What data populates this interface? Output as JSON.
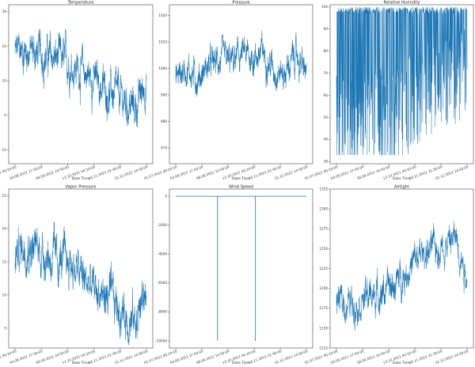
{
  "figure": {
    "line_color": "#1f77b4",
    "x_tick_labels": [
      "01.07.2021 00:10:00",
      "04.08.2021 17:50:00",
      "08.09.2021 10:50:00",
      "13.10.2021 04:10:00",
      "16.11.2021 21:30:00",
      "21.12.2021 14:50:00"
    ],
    "xlabel": "Date Time"
  },
  "chart_data": [
    {
      "type": "line",
      "title": "Temperature",
      "xlabel": "Date Time",
      "ylabel": "",
      "ylim": [
        -14,
        32
      ],
      "yticks": [
        30,
        20,
        10,
        0,
        -10
      ],
      "x": [
        "01.07.2021 00:10:00",
        "04.08.2021 17:50:00",
        "08.09.2021 10:50:00",
        "13.10.2021 04:10:00",
        "16.11.2021 21:30:00",
        "21.12.2021 14:50:00"
      ],
      "trend": [
        18,
        19,
        18,
        17,
        16,
        15,
        13,
        11,
        8,
        6,
        4,
        2,
        10
      ],
      "amplitude": 6,
      "series": [
        {
          "name": "Temperature",
          "values_approx": {
            "start": 17,
            "max": 31,
            "min": -12,
            "end": 14
          }
        }
      ]
    },
    {
      "type": "line",
      "title": "Pressure",
      "xlabel": "Date Time",
      "ylabel": "",
      "ylim": [
        964,
        1024
      ],
      "yticks": [
        1020,
        1010,
        1000,
        990,
        980,
        970
      ],
      "x": [
        "01.07.2021 00:10:00",
        "04.08.2021 17:50:00",
        "08.09.2021 10:50:00",
        "13.10.2021 04:10:00",
        "16.11.2021 21:30:00",
        "21.12.2021 14:50:00"
      ],
      "trend": [
        997,
        1000,
        996,
        1001,
        1003,
        1002,
        1005,
        1004,
        1006,
        1000,
        998,
        1005,
        998
      ],
      "amplitude": 6,
      "series": [
        {
          "name": "Pressure",
          "values_approx": {
            "start": 995,
            "max": 1022,
            "min": 968,
            "end": 1003
          }
        }
      ]
    },
    {
      "type": "line",
      "title": "Relative Humidity",
      "xlabel": "Date Time",
      "ylabel": "",
      "ylim": [
        29,
        101
      ],
      "yticks": [
        100,
        90,
        80,
        70,
        60,
        50,
        40,
        30
      ],
      "x": [
        "01.07.2021 00:10:00",
        "04.08.2021 17:50:00",
        "08.09.2021 10:50:00",
        "13.10.2021 04:10:00",
        "16.11.2021 21:30:00",
        "21.12.2021 14:50:00"
      ],
      "trend": [
        70,
        68,
        68,
        70,
        72,
        72,
        75,
        80,
        85,
        88,
        90,
        92,
        90
      ],
      "amplitude": 30,
      "series": [
        {
          "name": "Relative Humidity",
          "values_approx": {
            "max": 100,
            "min": 33
          }
        }
      ]
    },
    {
      "type": "line",
      "title": "Vapor Pressure",
      "xlabel": "Date Time",
      "ylabel": "",
      "ylim": [
        2,
        26
      ],
      "yticks": [
        25,
        20,
        15,
        10,
        5
      ],
      "x": [
        "01.07.2021 00:10:00",
        "04.08.2021 17:50:00",
        "08.09.2021 10:50:00",
        "13.10.2021 04:10:00",
        "16.11.2021 21:30:00",
        "21.12.2021 14:50:00"
      ],
      "trend": [
        16,
        18,
        17,
        16,
        15,
        15,
        13,
        11,
        10,
        9,
        7,
        6,
        11
      ],
      "amplitude": 3.5,
      "series": [
        {
          "name": "Vapor Pressure",
          "values_approx": {
            "start": 15,
            "max": 24.5,
            "min": 3,
            "end": 12
          }
        }
      ]
    },
    {
      "type": "line",
      "title": "Wind Speed",
      "xlabel": "Date Time",
      "ylabel": "",
      "ylim": [
        -10500,
        500
      ],
      "yticks": [
        0,
        -2000,
        -4000,
        -6000,
        -8000,
        -10000
      ],
      "x": [
        "01.07.2021 00:10:00",
        "04.08.2021 17:50:00",
        "08.09.2021 10:50:00",
        "13.10.2021 04:10:00",
        "16.11.2021 21:30:00",
        "21.12.2021 14:50:00"
      ],
      "series": [
        {
          "name": "Wind Speed",
          "values_approx": {
            "baseline": 0,
            "spikes": [
              {
                "at_fraction": 0.32,
                "value": -9999
              },
              {
                "at_fraction": 0.61,
                "value": -9999
              }
            ]
          }
        }
      ]
    },
    {
      "type": "line",
      "title": "Airtight",
      "xlabel": "Date Time",
      "ylabel": "",
      "ylim": [
        1125,
        1325
      ],
      "yticks": [
        1325,
        1300,
        1275,
        1250,
        1225,
        1200,
        1175,
        1150,
        1125
      ],
      "x": [
        "01.07.2021 00:10:00",
        "04.08.2021 17:50:00",
        "08.09.2021 10:50:00",
        "13.10.2021 04:10:00",
        "16.11.2021 21:30:00",
        "21.12.2021 14:50:00"
      ],
      "trend": [
        1185,
        1180,
        1185,
        1190,
        1195,
        1200,
        1215,
        1230,
        1245,
        1250,
        1255,
        1265,
        1215
      ],
      "amplitude": 22,
      "series": [
        {
          "name": "Airtight",
          "values_approx": {
            "start": 1185,
            "max": 1315,
            "min": 1135,
            "end": 1210
          }
        }
      ]
    }
  ]
}
